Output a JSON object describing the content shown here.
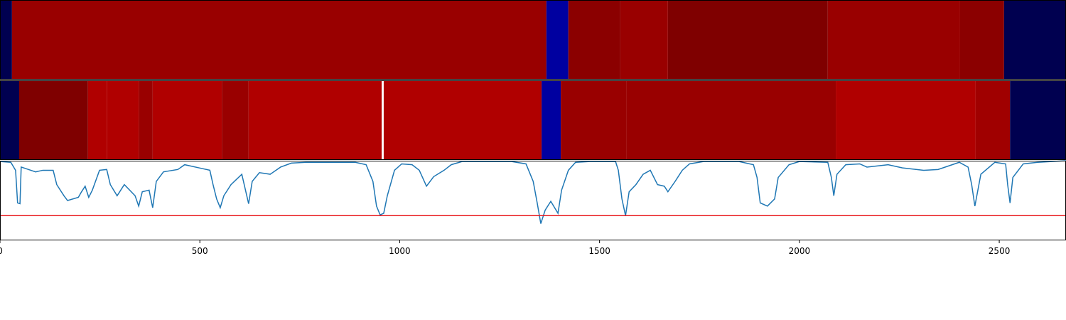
{
  "chart_data": [
    {
      "type": "segments",
      "xlim": [
        0,
        2667
      ],
      "segments": [
        {
          "start": 0,
          "end": 30,
          "color": "#000050"
        },
        {
          "start": 30,
          "end": 1367,
          "color": "#990000"
        },
        {
          "start": 1367,
          "end": 1422,
          "color": "#0000a0"
        },
        {
          "start": 1422,
          "end": 1552,
          "color": "#8b0000"
        },
        {
          "start": 1552,
          "end": 1671,
          "color": "#990000"
        },
        {
          "start": 1671,
          "end": 2071,
          "color": "#7f0000"
        },
        {
          "start": 2071,
          "end": 2402,
          "color": "#990000"
        },
        {
          "start": 2402,
          "end": 2512,
          "color": "#8b0000"
        },
        {
          "start": 2512,
          "end": 2667,
          "color": "#000050"
        }
      ]
    },
    {
      "type": "segments",
      "xlim": [
        0,
        2667
      ],
      "segments": [
        {
          "start": 0,
          "end": 48,
          "color": "#000050"
        },
        {
          "start": 48,
          "end": 220,
          "color": "#7f0000"
        },
        {
          "start": 220,
          "end": 268,
          "color": "#b00000"
        },
        {
          "start": 268,
          "end": 347,
          "color": "#b00000"
        },
        {
          "start": 347,
          "end": 382,
          "color": "#990000"
        },
        {
          "start": 382,
          "end": 555,
          "color": "#b00000"
        },
        {
          "start": 555,
          "end": 622,
          "color": "#990000"
        },
        {
          "start": 622,
          "end": 955,
          "color": "#b00000"
        },
        {
          "start": 955,
          "end": 960,
          "color": "#ffffff"
        },
        {
          "start": 960,
          "end": 1355,
          "color": "#b00000"
        },
        {
          "start": 1355,
          "end": 1403,
          "color": "#0000a0"
        },
        {
          "start": 1403,
          "end": 1568,
          "color": "#990000"
        },
        {
          "start": 1568,
          "end": 2091,
          "color": "#990000"
        },
        {
          "start": 2091,
          "end": 2441,
          "color": "#b00000"
        },
        {
          "start": 2441,
          "end": 2527,
          "color": "#a00000"
        },
        {
          "start": 2527,
          "end": 2667,
          "color": "#000050"
        }
      ]
    },
    {
      "type": "line",
      "xlim": [
        0,
        2667
      ],
      "ylim": [
        0,
        1
      ],
      "color": "#1f77b4",
      "xticks": [
        0,
        500,
        1000,
        1500,
        2000,
        2500
      ],
      "threshold": {
        "value": 0.31,
        "color": "#e8161b"
      },
      "x": [
        0,
        27,
        39,
        44,
        50,
        53,
        71,
        89,
        107,
        133,
        142,
        160,
        169,
        196,
        204,
        213,
        222,
        231,
        249,
        267,
        276,
        293,
        311,
        338,
        347,
        356,
        373,
        382,
        391,
        409,
        445,
        462,
        498,
        525,
        533,
        542,
        551,
        560,
        578,
        605,
        622,
        631,
        649,
        676,
        702,
        729,
        765,
        800,
        836,
        889,
        916,
        933,
        942,
        951,
        960,
        969,
        987,
        1005,
        1031,
        1049,
        1067,
        1085,
        1111,
        1129,
        1156,
        1209,
        1280,
        1316,
        1334,
        1344,
        1353,
        1364,
        1378,
        1396,
        1405,
        1422,
        1440,
        1476,
        1540,
        1547,
        1556,
        1565,
        1574,
        1591,
        1609,
        1627,
        1645,
        1662,
        1671,
        1689,
        1707,
        1725,
        1760,
        1849,
        1885,
        1894,
        1902,
        1920,
        1938,
        1947,
        1974,
        2000,
        2071,
        2080,
        2086,
        2094,
        2116,
        2151,
        2169,
        2222,
        2258,
        2311,
        2347,
        2400,
        2422,
        2431,
        2439,
        2454,
        2489,
        2516,
        2521,
        2527,
        2534,
        2560,
        2596,
        2667
      ],
      "values": [
        0.99,
        0.98,
        0.88,
        0.47,
        0.46,
        0.92,
        0.89,
        0.86,
        0.88,
        0.88,
        0.7,
        0.56,
        0.5,
        0.54,
        0.61,
        0.68,
        0.54,
        0.63,
        0.88,
        0.89,
        0.7,
        0.56,
        0.7,
        0.56,
        0.43,
        0.61,
        0.63,
        0.41,
        0.74,
        0.86,
        0.89,
        0.95,
        0.91,
        0.88,
        0.7,
        0.52,
        0.41,
        0.56,
        0.7,
        0.83,
        0.46,
        0.74,
        0.85,
        0.83,
        0.92,
        0.97,
        0.98,
        0.98,
        0.98,
        0.98,
        0.95,
        0.74,
        0.43,
        0.32,
        0.34,
        0.56,
        0.88,
        0.96,
        0.95,
        0.88,
        0.68,
        0.8,
        0.88,
        0.95,
        0.99,
        0.99,
        0.99,
        0.96,
        0.74,
        0.47,
        0.21,
        0.38,
        0.49,
        0.34,
        0.63,
        0.88,
        0.98,
        0.99,
        0.99,
        0.88,
        0.52,
        0.31,
        0.61,
        0.7,
        0.83,
        0.88,
        0.7,
        0.68,
        0.61,
        0.74,
        0.88,
        0.96,
        0.99,
        0.99,
        0.95,
        0.79,
        0.47,
        0.43,
        0.52,
        0.79,
        0.95,
        0.99,
        0.98,
        0.79,
        0.56,
        0.83,
        0.95,
        0.96,
        0.92,
        0.95,
        0.91,
        0.88,
        0.89,
        0.98,
        0.92,
        0.7,
        0.43,
        0.83,
        0.98,
        0.96,
        0.7,
        0.47,
        0.79,
        0.96,
        0.98,
        1.0
      ]
    }
  ]
}
